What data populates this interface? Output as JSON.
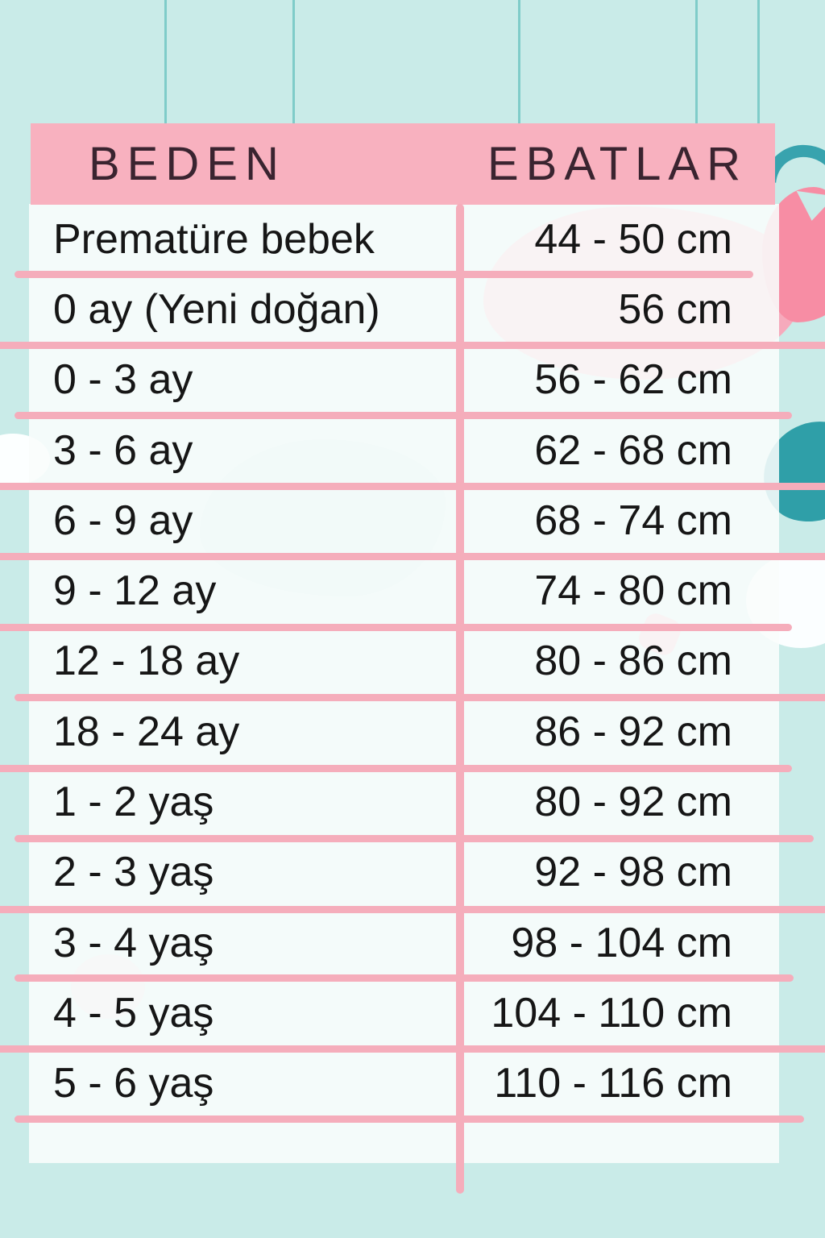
{
  "header": {
    "size_label": "BEDEN",
    "dimensions_label": "EBATLAR"
  },
  "chart_data": {
    "type": "table",
    "columns": [
      "BEDEN",
      "EBATLAR"
    ],
    "rows": [
      [
        "Prematüre bebek",
        "44 - 50 cm"
      ],
      [
        "0 ay (Yeni doğan)",
        "56 cm"
      ],
      [
        "0 - 3 ay",
        "56 - 62 cm"
      ],
      [
        "3 - 6 ay",
        "62 - 68 cm"
      ],
      [
        "6 - 9 ay",
        "68 - 74 cm"
      ],
      [
        "9 - 12 ay",
        "74 - 80 cm"
      ],
      [
        "12 - 18 ay",
        "80 - 86 cm"
      ],
      [
        "18 - 24 ay",
        "86 - 92 cm"
      ],
      [
        "1 - 2 yaş",
        "80 - 92 cm"
      ],
      [
        "2 - 3 yaş",
        "92 - 98 cm"
      ],
      [
        "3 - 4 yaş",
        "98 - 104 cm"
      ],
      [
        "4 - 5 yaş",
        "104 - 110 cm"
      ],
      [
        "5 - 6 yaş",
        "110 - 116 cm"
      ]
    ]
  },
  "colors": {
    "background": "#c9ebe8",
    "band_pink": "#f8b1bf",
    "line_pink": "#f5adbb",
    "header_text": "#3a2430",
    "body_text": "#161616",
    "string_teal": "#7fccc9",
    "decor_teal": "#38a3ae",
    "decor_pink": "#f78da4"
  }
}
